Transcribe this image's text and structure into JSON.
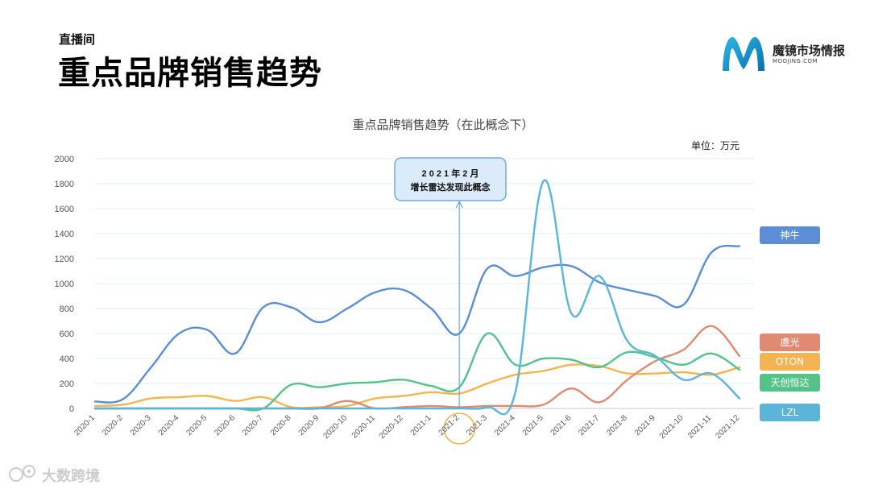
{
  "page": {
    "kicker": "直播间",
    "headline": "重点品牌销售趋势",
    "logo_name": "魔镜市场情报",
    "logo_sub": "MOOJING.COM",
    "watermark": "大数跨境"
  },
  "colors": {
    "神牛": "#5b8ed6",
    "LZL": "#5ab5d8",
    "虞光": "#e08a72",
    "OTON": "#f5b452",
    "天创恒达": "#54c38a",
    "annotation_border": "#5b9bd5",
    "circle": "#f0b14a"
  },
  "chart_data": {
    "type": "line",
    "title": "重点品牌销售趋势（在此概念下）",
    "unit": "单位：万元",
    "categories": [
      "2020-1",
      "2020-2",
      "2020-3",
      "2020-4",
      "2020-5",
      "2020-6",
      "2020-7",
      "2020-8",
      "2020-9",
      "2020-10",
      "2020-11",
      "2020-12",
      "2021-1",
      "2021-2",
      "2021-3",
      "2021-4",
      "2021-5",
      "2021-6",
      "2021-7",
      "2021-8",
      "2021-9",
      "2021-10",
      "2021-11",
      "2021-12"
    ],
    "ylim": [
      0,
      2000
    ],
    "yticks": [
      0,
      200,
      400,
      600,
      800,
      1000,
      1200,
      1400,
      1600,
      1800,
      2000
    ],
    "grid": true,
    "legend_position": "right",
    "series": [
      {
        "name": "神牛",
        "values": [
          55,
          75,
          330,
          600,
          630,
          440,
          810,
          810,
          690,
          800,
          930,
          950,
          800,
          600,
          1120,
          1060,
          1130,
          1140,
          1010,
          950,
          900,
          830,
          1250,
          1300
        ]
      },
      {
        "name": "LZL",
        "values": [
          0,
          0,
          0,
          0,
          0,
          0,
          0,
          0,
          0,
          0,
          0,
          0,
          0,
          0,
          10,
          130,
          1820,
          760,
          1060,
          540,
          420,
          230,
          280,
          80
        ]
      },
      {
        "name": "虞光",
        "values": [
          0,
          0,
          0,
          0,
          0,
          0,
          0,
          0,
          0,
          60,
          0,
          10,
          20,
          10,
          20,
          20,
          30,
          160,
          50,
          230,
          380,
          470,
          660,
          420
        ]
      },
      {
        "name": "OTON",
        "values": [
          20,
          30,
          80,
          90,
          100,
          60,
          90,
          10,
          10,
          20,
          80,
          100,
          130,
          120,
          200,
          270,
          300,
          350,
          340,
          280,
          280,
          290,
          270,
          330
        ]
      },
      {
        "name": "天创恒达",
        "values": [
          0,
          0,
          0,
          0,
          0,
          0,
          0,
          190,
          170,
          200,
          210,
          230,
          180,
          170,
          600,
          350,
          400,
          390,
          330,
          450,
          410,
          350,
          440,
          310
        ]
      }
    ],
    "legend_order": [
      "神牛",
      "虞光",
      "OTON",
      "天创恒达",
      "LZL"
    ],
    "annotation": {
      "line1": "2 0 2 1 年 2 月",
      "line2": "增长雷达发现此概念",
      "category": "2021-2"
    }
  }
}
